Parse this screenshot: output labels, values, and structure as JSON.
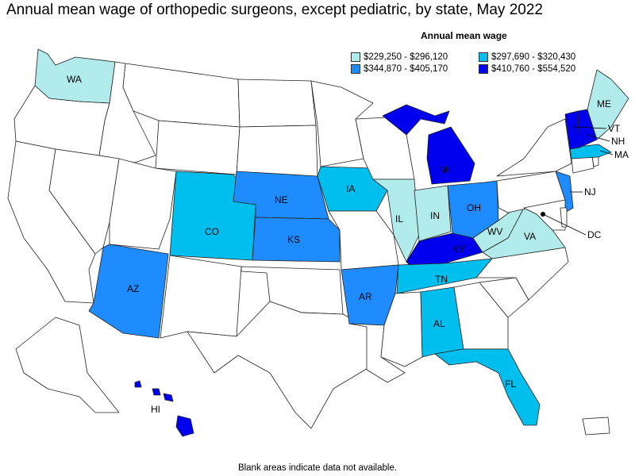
{
  "title": "Annual mean wage of orthopedic surgeons, except pediatric, by state, May 2022",
  "legend": {
    "title": "Annual mean wage",
    "items": [
      {
        "label": "$229,250 - $296,120",
        "color": "#b2ebeb"
      },
      {
        "label": "$297,690 - $320,430",
        "color": "#00bfef"
      },
      {
        "label": "$344,870 - $405,170",
        "color": "#1e8cff"
      },
      {
        "label": "$410,760 - $554,520",
        "color": "#0000ee"
      }
    ]
  },
  "colors": {
    "none": "#ffffff",
    "tier1": "#b2ebeb",
    "tier2": "#00bfef",
    "tier3": "#1e8cff",
    "tier4": "#0000ee"
  },
  "state_labels": {
    "WA": "WA",
    "NE": "NE",
    "IA": "IA",
    "CO": "CO",
    "KS": "KS",
    "AZ": "AZ",
    "AR": "AR",
    "IL": "IL",
    "IN": "IN",
    "OH": "OH",
    "MI": "MI",
    "KY": "KY",
    "TN": "TN",
    "AL": "AL",
    "FL": "FL",
    "WV": "WV",
    "VA": "VA",
    "NJ": "NJ",
    "DC": "DC",
    "ME": "ME",
    "VT": "VT",
    "NH": "NH",
    "MA": "MA",
    "HI": "HI"
  },
  "footnote": "Blank areas indicate data not available."
}
